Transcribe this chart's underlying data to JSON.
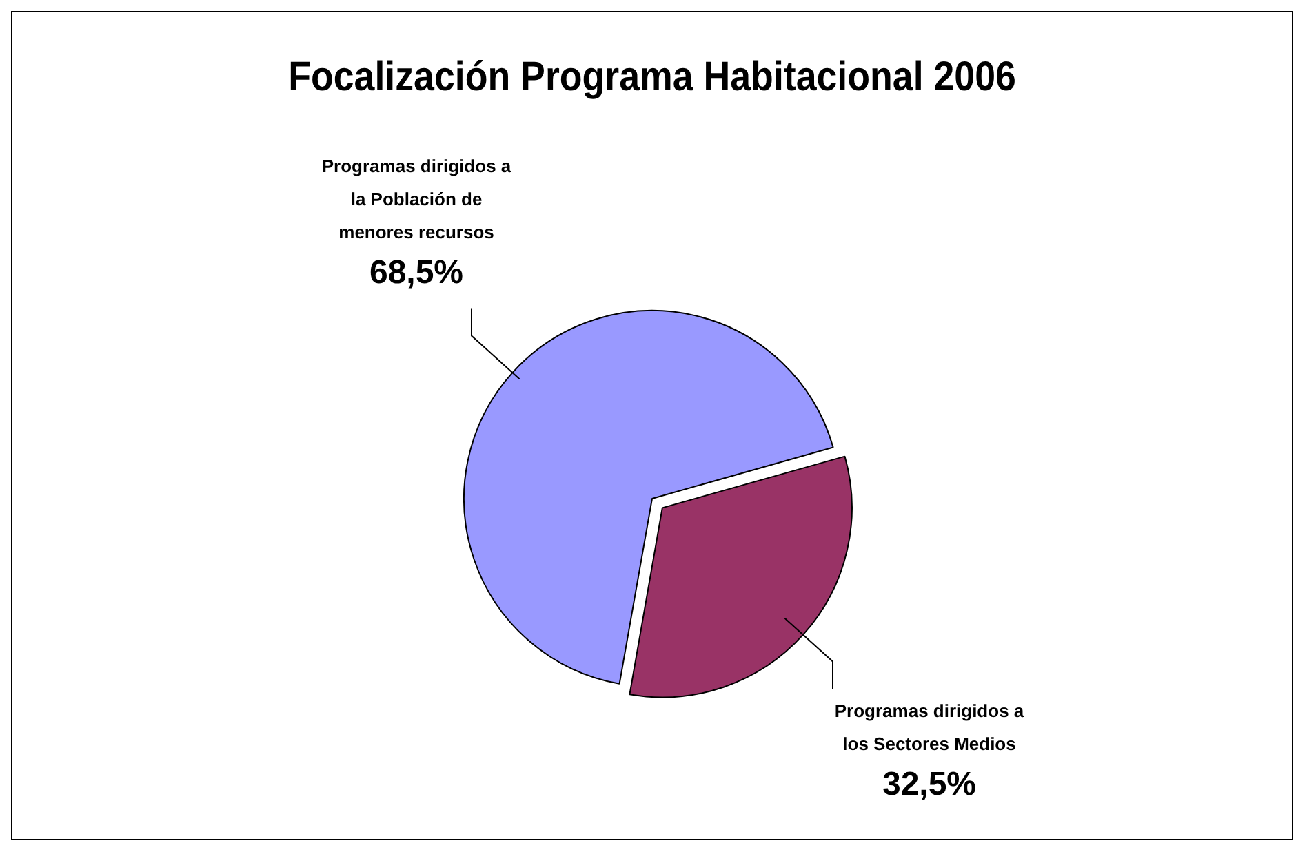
{
  "chart_data": {
    "type": "pie",
    "title": "Focalización Programa Habitacional 2006",
    "categories": [
      "Programas dirigidos a la Población de menores recursos",
      "Programas dirigidos a los Sectores Medios"
    ],
    "values": [
      68.5,
      32.5
    ],
    "colors": [
      "#9999ff",
      "#993366"
    ],
    "value_labels": [
      "68,5%",
      "32,5%"
    ],
    "legend": false
  }
}
